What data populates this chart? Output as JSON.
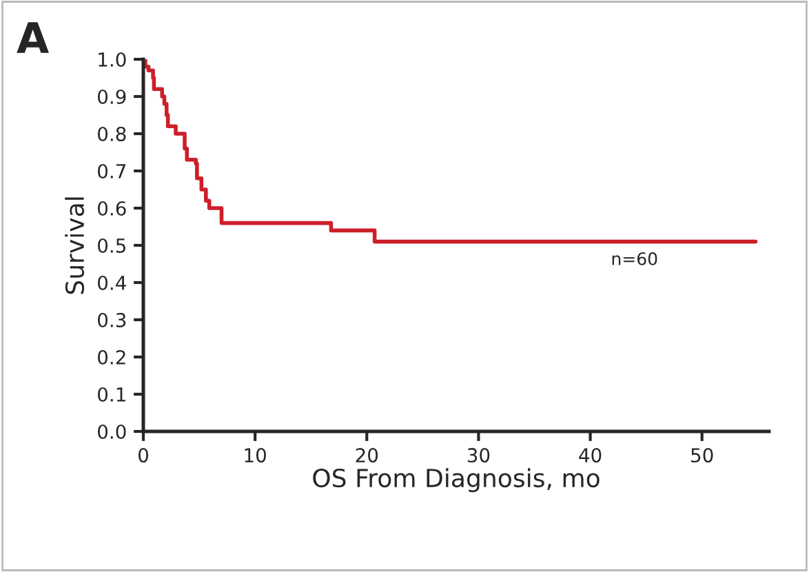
{
  "chart_data": {
    "type": "step",
    "xlabel": "OS From Diagnosis, mo",
    "ylabel": "Survival",
    "annotations": [
      "A",
      "n=60"
    ],
    "series": [
      {
        "color": "#cc1f2a",
        "x": [
          0,
          0.18,
          0.46,
          0.87,
          0.95,
          1.68,
          1.88,
          2.08,
          2.2,
          2.9,
          3.7,
          3.9,
          4.7,
          4.8,
          5.2,
          5.6,
          5.9,
          7.0,
          16.8,
          20.7,
          54.8
        ],
        "values": [
          1.0,
          0.98,
          0.97,
          0.95,
          0.92,
          0.9,
          0.88,
          0.85,
          0.82,
          0.8,
          0.76,
          0.73,
          0.72,
          0.68,
          0.65,
          0.62,
          0.6,
          0.56,
          0.54,
          0.51,
          0.51
        ]
      }
    ],
    "xlim": [
      0,
      56
    ],
    "ylim": [
      0,
      1
    ],
    "xticks": [
      0,
      10,
      20,
      30,
      40,
      50
    ],
    "yticks": [
      {
        "value": 0,
        "label": "0.0"
      },
      {
        "value": 0.1,
        "label": "0.1"
      },
      {
        "value": 0.2,
        "label": "0.2"
      },
      {
        "value": 0.3,
        "label": "0.3"
      },
      {
        "value": 0.4,
        "label": "0.4"
      },
      {
        "value": 0.5,
        "label": "0.5"
      },
      {
        "value": 0.6,
        "label": "0.6"
      },
      {
        "value": 0.7,
        "label": "0.7"
      },
      {
        "value": 0.8,
        "label": "0.8"
      },
      {
        "value": 0.9,
        "label": "0.9"
      },
      {
        "value": 1.0,
        "label": "1.0"
      }
    ],
    "grid": false
  }
}
